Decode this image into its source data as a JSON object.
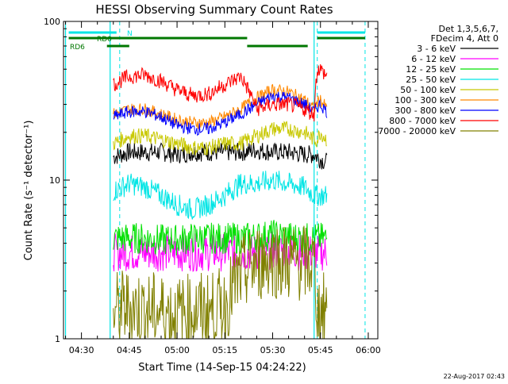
{
  "chart_data": {
    "type": "line",
    "title": "HESSI Observing Summary Count Rates",
    "xlabel": "Start Time (14-Sep-15 04:24:22)",
    "ylabel": "Count Rate (s⁻¹ detector⁻¹)",
    "y_scale": "log",
    "ylim": [
      1,
      100
    ],
    "xlim": [
      "04:24:22",
      "06:03:00"
    ],
    "x_ticks": [
      "04:30",
      "04:45",
      "05:00",
      "05:15",
      "05:30",
      "05:45",
      "06:00"
    ],
    "y_ticks": [
      "1",
      "10",
      "100"
    ],
    "grid": false,
    "legend_position": "right",
    "legend_header": [
      "Det 1,3,5,6,7,",
      "FDecim 4, Att 0"
    ],
    "footer_date": "22-Aug-2017 02:43",
    "status_bars": [
      {
        "label": "N",
        "color": "#00e5e5",
        "segments": [
          [
            "04:26",
            "04:41"
          ],
          [
            "05:44",
            "05:59"
          ]
        ]
      },
      {
        "label": "RD0",
        "color": "#007700",
        "segments": [
          [
            "04:26",
            "05:22"
          ],
          [
            "05:44",
            "05:59"
          ]
        ]
      },
      {
        "label": "RD6",
        "color": "#007700",
        "segments": [
          [
            "04:38",
            "04:45"
          ],
          [
            "05:22",
            "05:41"
          ]
        ]
      }
    ],
    "night_lines": {
      "color": "#00e5e5",
      "solid": [
        "04:25",
        "04:39",
        "05:43"
      ],
      "dashed": [
        "04:42",
        "05:44",
        "05:59"
      ]
    },
    "series": [
      {
        "name": "3 - 6 keV",
        "color": "#000000",
        "x": [
          "04:40",
          "04:45",
          "04:50",
          "04:55",
          "05:00",
          "05:05",
          "05:10",
          "05:15",
          "05:20",
          "05:25",
          "05:30",
          "05:35",
          "05:40",
          "05:43",
          "05:44",
          "05:45",
          "05:47"
        ],
        "y": [
          14,
          15,
          15,
          15,
          14.5,
          15,
          15,
          15,
          15,
          15.5,
          15,
          15,
          14.5,
          14.5,
          14,
          13.5,
          13
        ]
      },
      {
        "name": "6 - 12 keV",
        "color": "#ff00ff",
        "x": [
          "04:40",
          "04:45",
          "04:50",
          "04:55",
          "05:00",
          "05:05",
          "05:10",
          "05:15",
          "05:20",
          "05:25",
          "05:30",
          "05:35",
          "05:40",
          "05:43",
          "05:44",
          "05:45",
          "05:47"
        ],
        "y": [
          3.5,
          3.5,
          3.5,
          3.5,
          3.5,
          3.5,
          3.5,
          3.5,
          3.5,
          3.5,
          3.6,
          3.6,
          3.5,
          3.5,
          3.5,
          3.5,
          3.5
        ]
      },
      {
        "name": "12 - 25 keV",
        "color": "#00e000",
        "x": [
          "04:40",
          "04:45",
          "04:50",
          "04:55",
          "05:00",
          "05:05",
          "05:10",
          "05:15",
          "05:20",
          "05:25",
          "05:30",
          "05:35",
          "05:40",
          "05:43",
          "05:44",
          "05:45",
          "05:47"
        ],
        "y": [
          4.3,
          4.3,
          4.3,
          4.2,
          4.2,
          4.3,
          4.3,
          4.3,
          4.3,
          4.4,
          4.5,
          4.4,
          4.3,
          4.3,
          4.3,
          4.3,
          4.3
        ]
      },
      {
        "name": "25 - 50 keV",
        "color": "#00e5e5",
        "x": [
          "04:40",
          "04:45",
          "04:50",
          "04:55",
          "05:00",
          "05:05",
          "05:10",
          "05:15",
          "05:20",
          "05:25",
          "05:30",
          "05:35",
          "05:40",
          "05:43",
          "05:44",
          "05:45",
          "05:47"
        ],
        "y": [
          8.5,
          9.5,
          9,
          8,
          7,
          6.5,
          7,
          8,
          9.5,
          9.5,
          10,
          9.5,
          9,
          8,
          8,
          8,
          8
        ]
      },
      {
        "name": "50 - 100 keV",
        "color": "#c8c800",
        "x": [
          "04:40",
          "04:45",
          "04:50",
          "04:55",
          "05:00",
          "05:05",
          "05:10",
          "05:15",
          "05:20",
          "05:25",
          "05:30",
          "05:35",
          "05:40",
          "05:43",
          "05:44",
          "05:45",
          "05:47"
        ],
        "y": [
          17,
          19,
          19,
          18,
          17,
          16,
          16,
          17,
          17,
          19,
          21,
          21,
          20,
          18,
          18,
          20,
          18
        ]
      },
      {
        "name": "100 - 300 keV",
        "color": "#ff8800",
        "x": [
          "04:40",
          "04:45",
          "04:50",
          "04:55",
          "05:00",
          "05:05",
          "05:10",
          "05:15",
          "05:20",
          "05:25",
          "05:30",
          "05:35",
          "05:40",
          "05:43",
          "05:44",
          "05:45",
          "05:47"
        ],
        "y": [
          26,
          28,
          28,
          26,
          24,
          23,
          23,
          25,
          28,
          33,
          37,
          36,
          32,
          28,
          31,
          32,
          28
        ]
      },
      {
        "name": "300 - 800 keV",
        "color": "#0000ff",
        "x": [
          "04:40",
          "04:45",
          "04:50",
          "04:55",
          "05:00",
          "05:05",
          "05:10",
          "05:15",
          "05:20",
          "05:25",
          "05:30",
          "05:35",
          "05:40",
          "05:43",
          "05:44",
          "05:45",
          "05:47"
        ],
        "y": [
          25,
          27,
          27,
          25,
          22,
          21,
          21,
          23,
          26,
          30,
          34,
          33,
          30,
          27,
          29,
          30,
          27
        ]
      },
      {
        "name": "800 - 7000 keV",
        "color": "#ff0000",
        "x": [
          "04:40",
          "04:45",
          "04:50",
          "04:55",
          "05:00",
          "05:05",
          "05:10",
          "05:15",
          "05:20",
          "05:25",
          "05:30",
          "05:35",
          "05:40",
          "05:43",
          "05:44",
          "05:45",
          "05:47"
        ],
        "y": [
          40,
          45,
          46,
          42,
          37,
          34,
          35,
          40,
          45,
          28,
          30,
          30,
          28,
          26,
          50,
          50,
          45
        ]
      },
      {
        "name": "7000 - 20000 keV",
        "color": "#808000",
        "x": [
          "04:40",
          "04:45",
          "04:50",
          "04:55",
          "05:00",
          "05:05",
          "05:10",
          "05:15",
          "05:20",
          "05:25",
          "05:30",
          "05:35",
          "05:40",
          "05:43",
          "05:44",
          "05:45",
          "05:47"
        ],
        "y": [
          1.5,
          1.6,
          1.5,
          1.5,
          1.4,
          1.5,
          1.5,
          1.6,
          2.5,
          3,
          3.2,
          3,
          3,
          3,
          1.5,
          1.5,
          1.5
        ]
      }
    ]
  }
}
